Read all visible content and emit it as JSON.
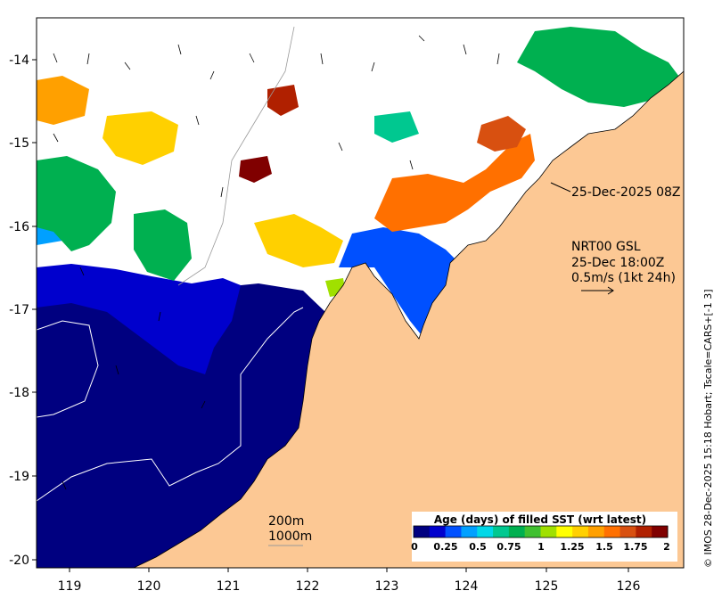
{
  "map": {
    "lon_ticks": [
      "119",
      "120",
      "121",
      "122",
      "123",
      "124",
      "125",
      "126"
    ],
    "lat_ticks": [
      "-14",
      "-15",
      "-16",
      "-17",
      "-18",
      "-19",
      "-20"
    ],
    "colors": {
      "land": "#fcc894",
      "ocean_missing": "#ffffff",
      "coast": "#000000",
      "bathy": "#9a9a9a"
    }
  },
  "annotations": {
    "pass_time": "25-Dec-2025 08Z",
    "current_source": "NRT00 GSL",
    "current_time": "25-Dec 18:00Z",
    "arrow_scale": "0.5m/s (1kt 24h)",
    "contour_200": "200m",
    "contour_1000": "1000m"
  },
  "colorbar": {
    "title": "Age (days) of filled SST (wrt latest)",
    "labels": [
      "0",
      "0.25",
      "0.5",
      "0.75",
      "1",
      "1.25",
      "1.5",
      "1.75",
      "2"
    ],
    "colors": [
      "#000080",
      "#0000cd",
      "#0050ff",
      "#00a0ff",
      "#00d8e8",
      "#00c890",
      "#00b050",
      "#40c030",
      "#a0e000",
      "#ffff00",
      "#ffd000",
      "#ffa000",
      "#ff7000",
      "#d85010",
      "#b02000",
      "#800000"
    ]
  },
  "credit": "© IMOS 28-Dec-2025 15:18 Hobart; Tscale=CARS+[-1 3]"
}
